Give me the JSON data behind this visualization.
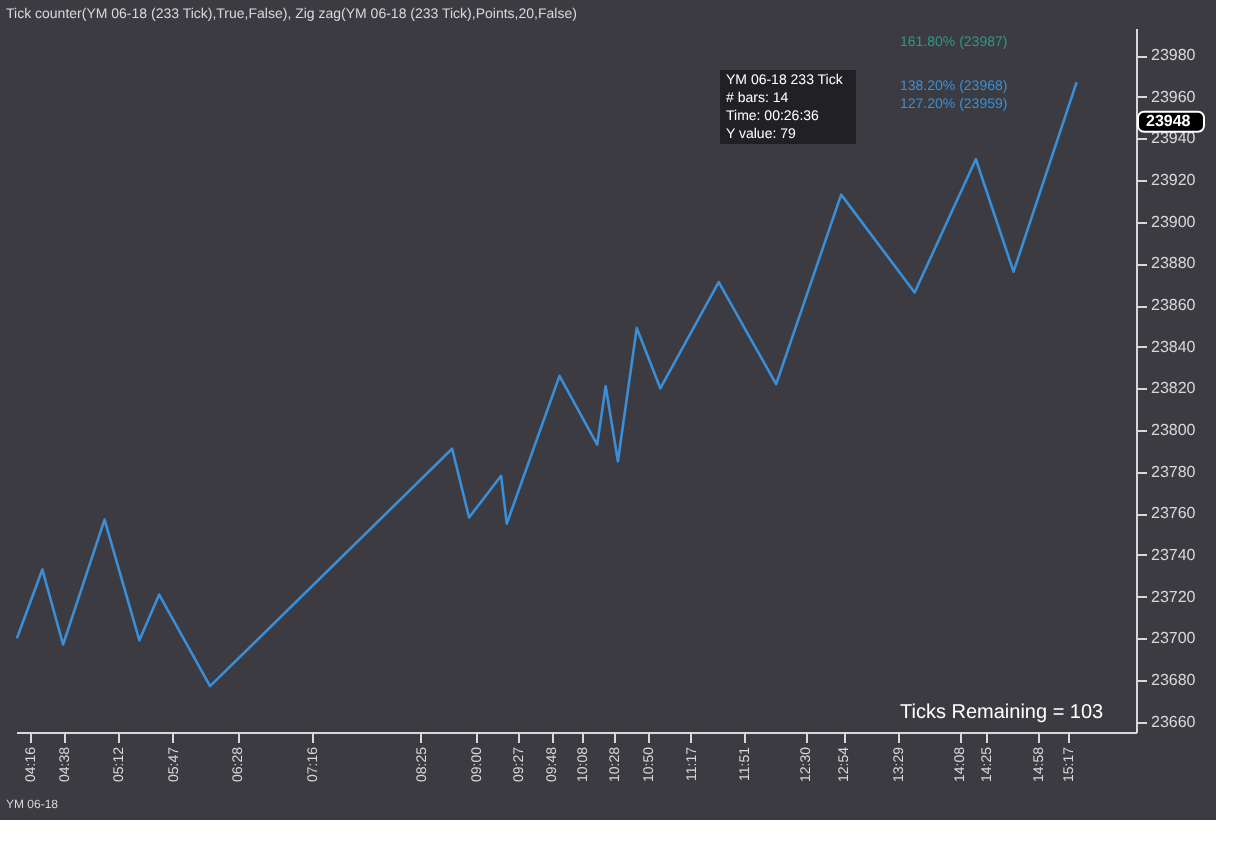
{
  "chart_data": {
    "type": "line",
    "title": "Tick counter(YM 06-18 (233 Tick),True,False), Zig zag(YM 06-18 (233 Tick),Points,20,False)",
    "x": [
      4.13,
      4.4,
      4.62,
      5.06,
      5.43,
      5.64,
      6.18,
      8.75,
      8.93,
      9.27,
      9.33,
      9.89,
      10.29,
      10.38,
      10.51,
      10.71,
      10.96,
      11.58,
      12.19,
      12.88,
      13.66,
      14.31,
      14.71,
      15.38
    ],
    "series": [
      {
        "color": "#3a8fd8",
        "values": [
          23700,
          23733,
          23697,
          23757,
          23699,
          23721,
          23677,
          23791,
          23758,
          23778,
          23755,
          23826,
          23793,
          23821,
          23785,
          23849,
          23820,
          23871,
          23822,
          23913,
          23866,
          23930,
          23876,
          23967
        ]
      }
    ],
    "xlim": [
      4.12,
      16.01
    ],
    "xticks": [
      {
        "value": 4.2667,
        "label": "04:16"
      },
      {
        "value": 4.6333,
        "label": "04:38"
      },
      {
        "value": 5.2,
        "label": "05:12"
      },
      {
        "value": 5.7833,
        "label": "05:47"
      },
      {
        "value": 6.4667,
        "label": "06:28"
      },
      {
        "value": 7.2667,
        "label": "07:16"
      },
      {
        "value": 8.4167,
        "label": "08:25"
      },
      {
        "value": 9.0,
        "label": "09:00"
      },
      {
        "value": 9.45,
        "label": "09:27"
      },
      {
        "value": 9.8,
        "label": "09:48"
      },
      {
        "value": 10.1333,
        "label": "10:08"
      },
      {
        "value": 10.4667,
        "label": "10:28"
      },
      {
        "value": 10.8333,
        "label": "10:50"
      },
      {
        "value": 11.2833,
        "label": "11:17"
      },
      {
        "value": 11.85,
        "label": "11:51"
      },
      {
        "value": 12.5,
        "label": "12:30"
      },
      {
        "value": 12.9,
        "label": "12:54"
      },
      {
        "value": 13.4833,
        "label": "13:29"
      },
      {
        "value": 14.1333,
        "label": "14:08"
      },
      {
        "value": 14.4167,
        "label": "14:25"
      },
      {
        "value": 14.9667,
        "label": "14:58"
      },
      {
        "value": 15.2833,
        "label": "15:17"
      }
    ],
    "ylim": [
      23655,
      23993
    ],
    "yticks": [
      23660,
      23680,
      23700,
      23720,
      23740,
      23760,
      23780,
      23800,
      23820,
      23840,
      23860,
      23880,
      23900,
      23920,
      23940,
      23960,
      23980
    ],
    "annotations": [
      "YM 06-18 233 Tick",
      "# bars:  14",
      "Time:  00:26:36",
      "Y value:  79",
      "161.80% (23987)",
      "138.20% (23968)",
      "127.20% (23959)",
      "Ticks Remaining = 103",
      "YM 06-18",
      {
        "text": "23948",
        "y": 23948
      }
    ],
    "grid": false,
    "marker": "none",
    "line_style": "solid"
  }
}
